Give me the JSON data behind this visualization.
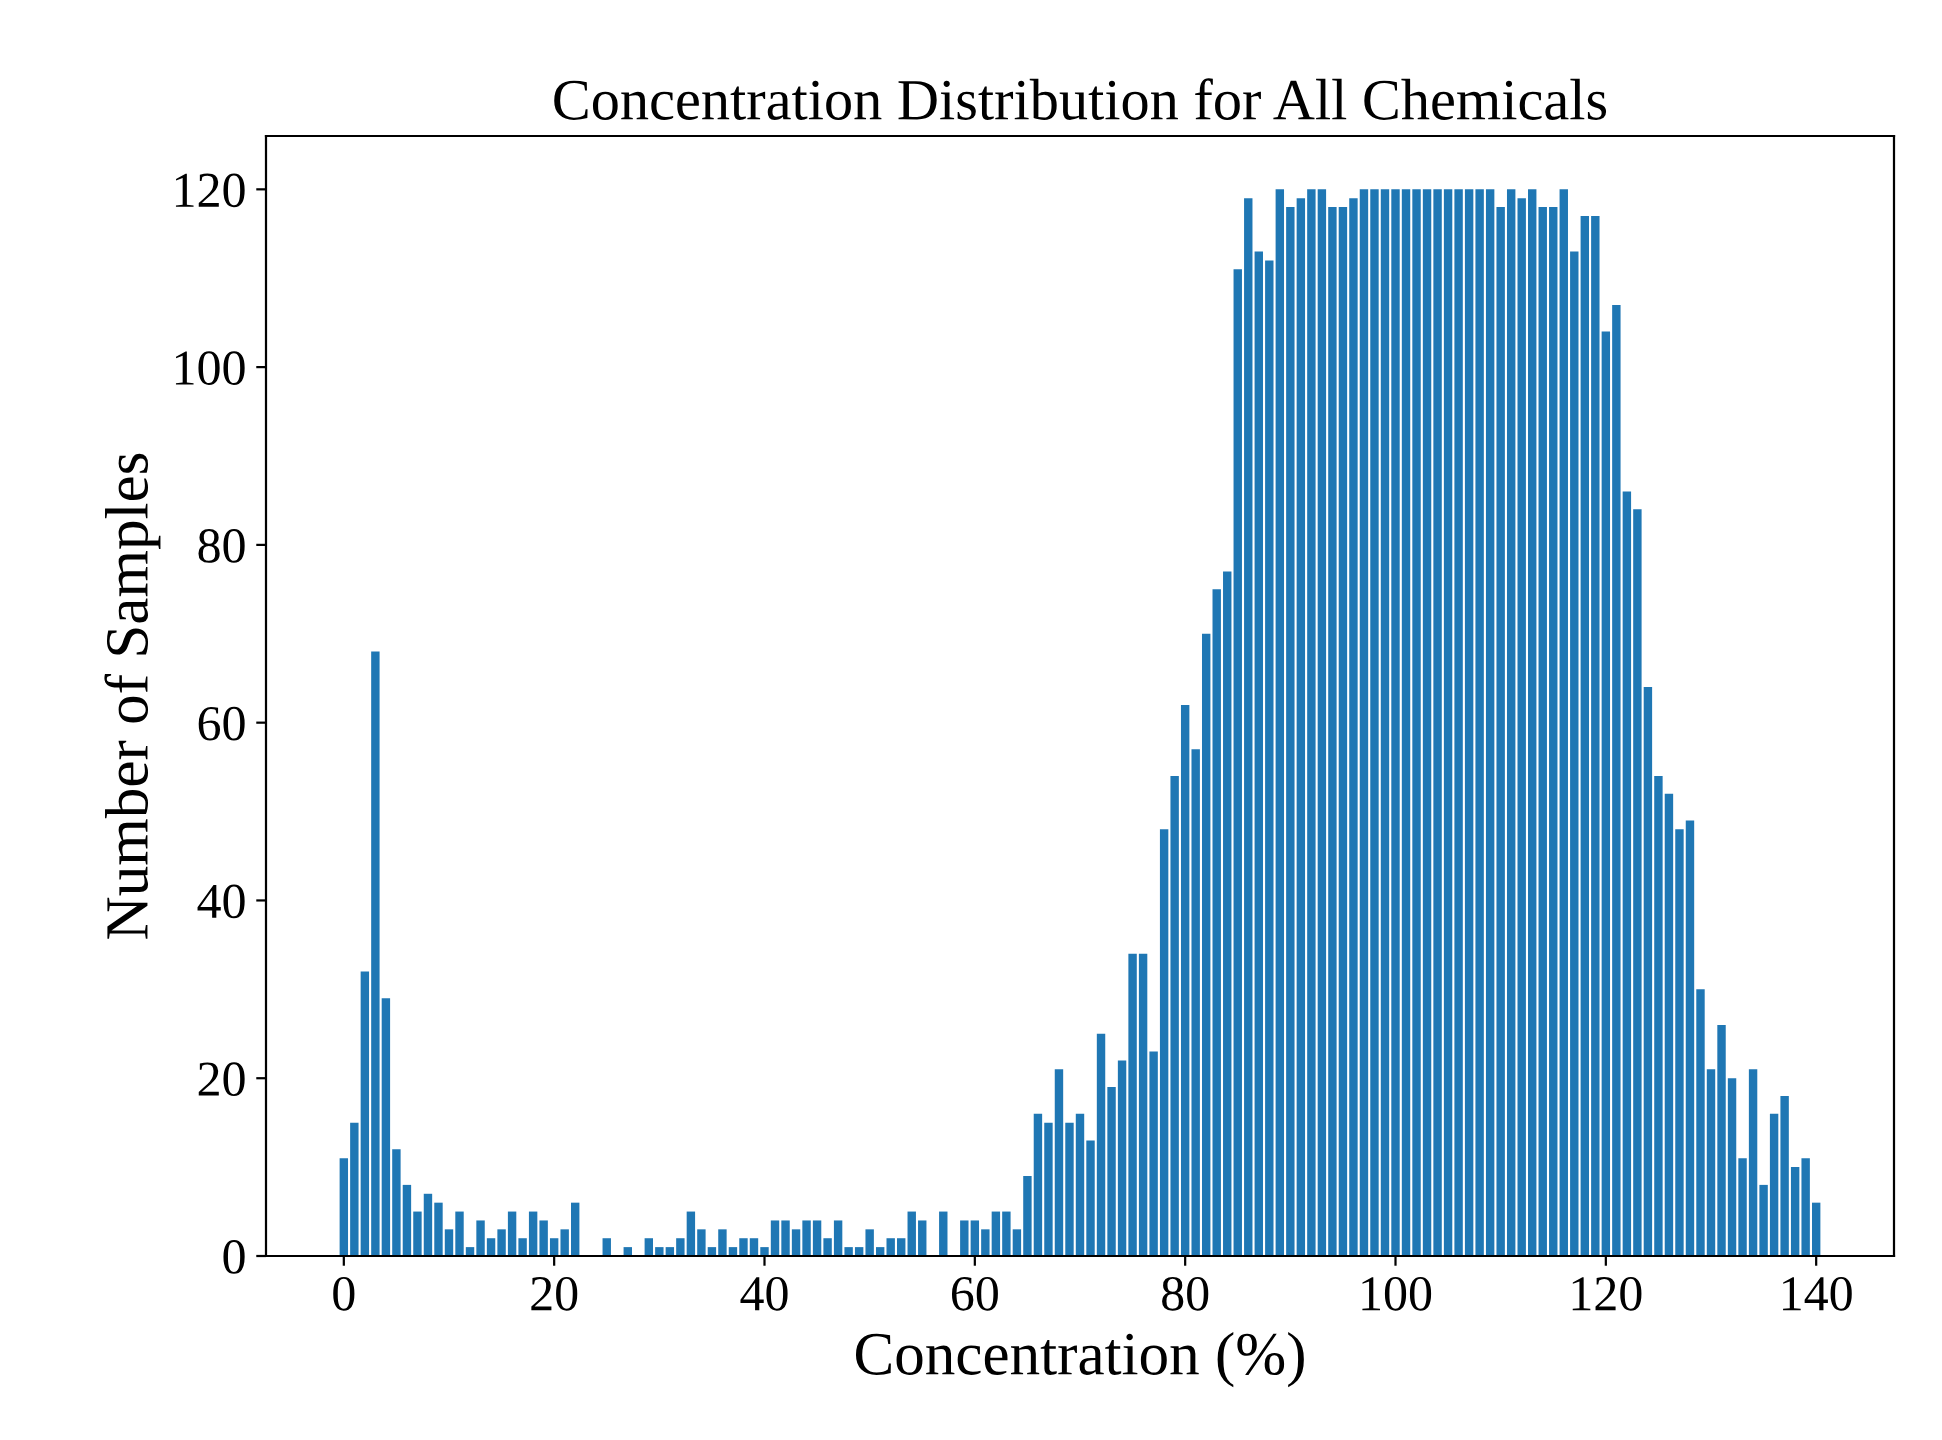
{
  "chart_data": {
    "type": "bar",
    "title": "Concentration Distribution for All Chemicals",
    "xlabel": "Concentration (%)",
    "ylabel": "Number of Samples",
    "x": [
      0,
      1,
      2,
      3,
      4,
      5,
      6,
      7,
      8,
      9,
      10,
      11,
      12,
      13,
      14,
      15,
      16,
      17,
      18,
      19,
      20,
      21,
      22,
      23,
      24,
      25,
      26,
      27,
      28,
      29,
      30,
      31,
      32,
      33,
      34,
      35,
      36,
      37,
      38,
      39,
      40,
      41,
      42,
      43,
      44,
      45,
      46,
      47,
      48,
      49,
      50,
      51,
      52,
      53,
      54,
      55,
      56,
      57,
      58,
      59,
      60,
      61,
      62,
      63,
      64,
      65,
      66,
      67,
      68,
      69,
      70,
      71,
      72,
      73,
      74,
      75,
      76,
      77,
      78,
      79,
      80,
      81,
      82,
      83,
      84,
      85,
      86,
      87,
      88,
      89,
      90,
      91,
      92,
      93,
      94,
      95,
      96,
      97,
      98,
      99,
      100,
      101,
      102,
      103,
      104,
      105,
      106,
      107,
      108,
      109,
      110,
      111,
      112,
      113,
      114,
      115,
      116,
      117,
      118,
      119,
      120,
      121,
      122,
      123,
      124,
      125,
      126,
      127,
      128,
      129,
      130,
      131,
      132,
      133,
      134,
      135,
      136,
      137,
      138,
      139,
      140
    ],
    "values": [
      11,
      15,
      32,
      68,
      29,
      12,
      8,
      5,
      7,
      6,
      3,
      5,
      1,
      4,
      2,
      3,
      5,
      2,
      5,
      4,
      2,
      3,
      6,
      0,
      0,
      2,
      0,
      1,
      0,
      2,
      1,
      1,
      2,
      5,
      3,
      1,
      3,
      1,
      2,
      2,
      1,
      4,
      4,
      3,
      4,
      4,
      2,
      4,
      1,
      1,
      3,
      1,
      2,
      2,
      5,
      4,
      0,
      5,
      0,
      4,
      4,
      3,
      5,
      5,
      3,
      9,
      16,
      15,
      21,
      15,
      16,
      13,
      25,
      19,
      22,
      34,
      34,
      23,
      48,
      54,
      62,
      57,
      70,
      75,
      77,
      111,
      119,
      113,
      112,
      120,
      118,
      119,
      120,
      120,
      118,
      118,
      119,
      120,
      120,
      120,
      120,
      120,
      120,
      120,
      120,
      120,
      120,
      120,
      120,
      120,
      118,
      120,
      119,
      120,
      118,
      118,
      120,
      113,
      117,
      117,
      104,
      107,
      86,
      84,
      64,
      54,
      52,
      48,
      49,
      30,
      21,
      26,
      20,
      11,
      21,
      8,
      16,
      18,
      10,
      11,
      6
    ],
    "color": "#1f77b4",
    "xlim": [
      -7.4,
      147.4
    ],
    "ylim": [
      0,
      126
    ],
    "xticks": [
      0,
      20,
      40,
      60,
      80,
      100,
      120,
      140
    ],
    "yticks": [
      0,
      20,
      40,
      60,
      80,
      100,
      120
    ],
    "grid": false
  }
}
